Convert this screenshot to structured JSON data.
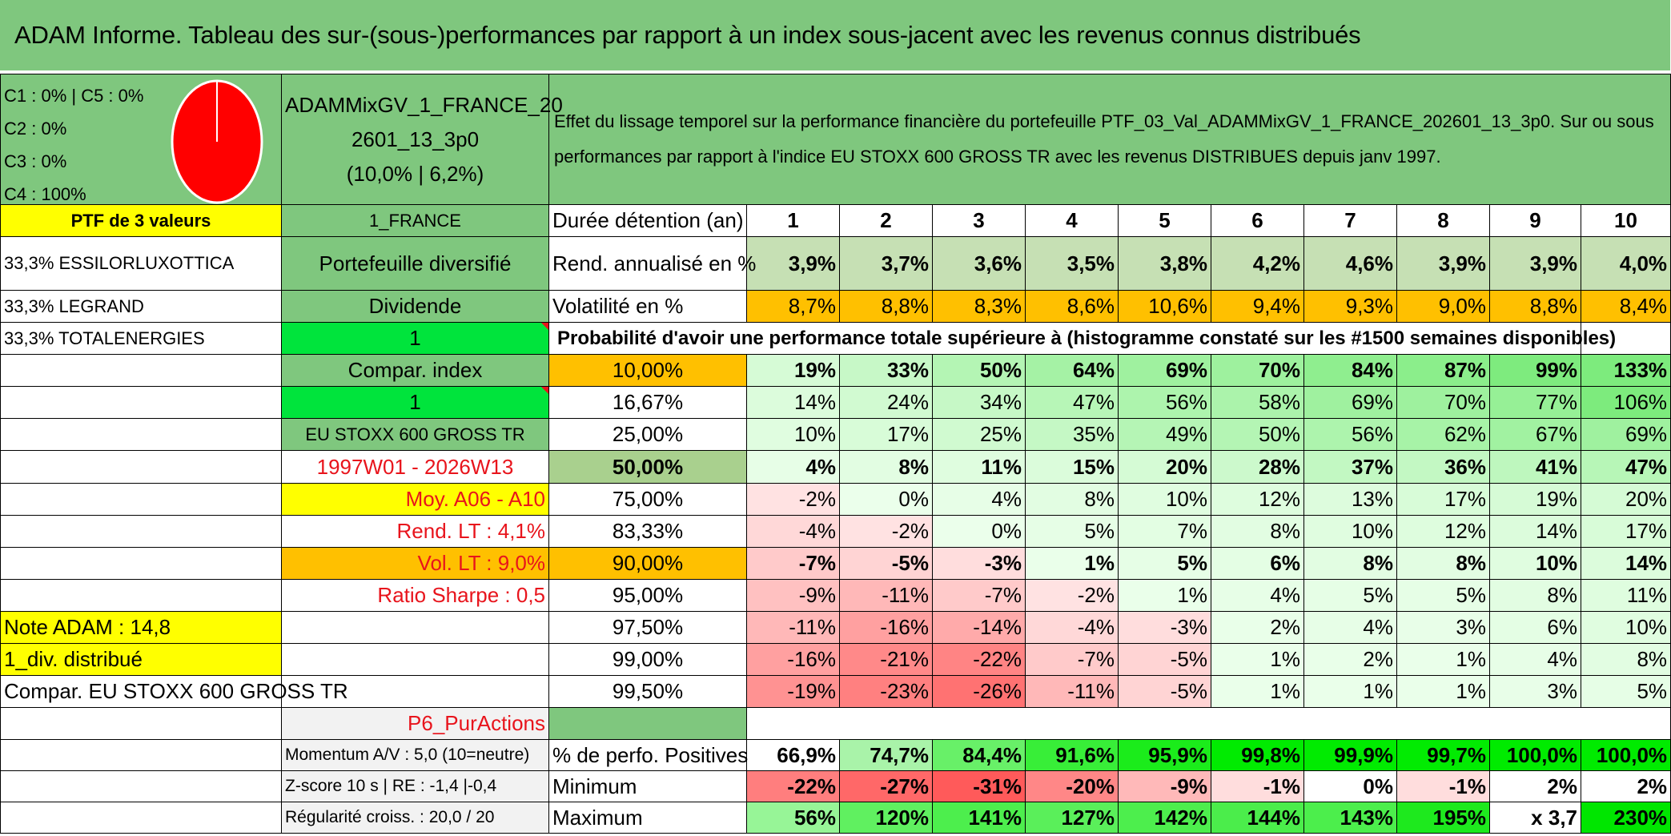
{
  "title": "ADAM Informe. Tableau des sur-(sous-)performances par rapport à un index sous-jacent avec les revenus connus distribués",
  "composition": {
    "lines": [
      "C1 : 0% | C5 : 0%",
      "C2 : 0%",
      "C3 : 0%",
      "C4 : 100%"
    ],
    "pie_color": "#ff0000"
  },
  "portfolio": {
    "name_line1": "ADAMMixGV_1_FRANCE_20",
    "name_line2": "2601_13_3p0",
    "name_line3": "(10,0% | 6,2%)",
    "effect_text": "Effet du lissage temporel sur la performance financière du portefeuille PTF_03_Val_ADAMMixGV_1_FRANCE_202601_13_3p0. Sur ou sous performances par rapport à l'indice EU STOXX 600 GROSS TR avec les revenus DISTRIBUES depuis janv 1997.",
    "ptf_label": "PTF de 3 valeurs",
    "category": "1_FRANCE",
    "holdings": [
      "33,3% ESSILORLUXOTTICA",
      "33,3% LEGRAND",
      "33,3% TOTALENERGIES"
    ],
    "diversified": "Portefeuille diversifié",
    "dividend_label": "Dividende",
    "dividend_value": "1",
    "compar_index_label": "Compar. index",
    "compar_index_value": "1",
    "index_name": "EU STOXX 600 GROSS TR",
    "period": "1997W01 - 2026W13",
    "avg_label": "Moy. A06 - A10",
    "rend_lt": "Rend. LT : 4,1%",
    "vol_lt": "Vol. LT : 9,0%",
    "sharpe": "Ratio Sharpe : 0,5",
    "note_adam": "Note ADAM : 14,8",
    "div_distrib": "1_div. distribué",
    "compar_text": "Compar. EU STOXX 600 GROSS TR",
    "p6": "P6_PurActions",
    "momentum": "Momentum A/V : 5,0 (10=neutre)",
    "zscore": "Z-score 10 s | RE : -1,4 |-0,4",
    "regularite": "Régularité croiss. : 20,0 / 20"
  },
  "table": {
    "duration_label": "Durée détention (an)",
    "years": [
      "1",
      "2",
      "3",
      "4",
      "5",
      "6",
      "7",
      "8",
      "9",
      "10"
    ],
    "rend_label": "Rend. annualisé en %",
    "rend": [
      "3,9%",
      "3,7%",
      "3,6%",
      "3,5%",
      "3,8%",
      "4,2%",
      "4,6%",
      "3,9%",
      "3,9%",
      "4,0%"
    ],
    "vol_label": "Volatilité en %",
    "vol": [
      "8,7%",
      "8,8%",
      "8,3%",
      "8,6%",
      "10,6%",
      "9,4%",
      "9,3%",
      "9,0%",
      "8,8%",
      "8,4%"
    ],
    "prob_header": "Probabilité d'avoir une performance totale supérieure à (histogramme constaté sur les #1500 semaines disponibles)",
    "quantiles": [
      {
        "label": "10,00%",
        "values": [
          "19%",
          "33%",
          "50%",
          "64%",
          "69%",
          "70%",
          "84%",
          "87%",
          "99%",
          "133%"
        ]
      },
      {
        "label": "16,67%",
        "values": [
          "14%",
          "24%",
          "34%",
          "47%",
          "56%",
          "58%",
          "69%",
          "70%",
          "77%",
          "106%"
        ]
      },
      {
        "label": "25,00%",
        "values": [
          "10%",
          "17%",
          "25%",
          "35%",
          "49%",
          "50%",
          "56%",
          "62%",
          "67%",
          "69%"
        ]
      },
      {
        "label": "50,00%",
        "values": [
          "4%",
          "8%",
          "11%",
          "15%",
          "20%",
          "28%",
          "37%",
          "36%",
          "41%",
          "47%"
        ]
      },
      {
        "label": "75,00%",
        "values": [
          "-2%",
          "0%",
          "4%",
          "8%",
          "10%",
          "12%",
          "13%",
          "17%",
          "19%",
          "20%"
        ]
      },
      {
        "label": "83,33%",
        "values": [
          "-4%",
          "-2%",
          "0%",
          "5%",
          "7%",
          "8%",
          "10%",
          "12%",
          "14%",
          "17%"
        ]
      },
      {
        "label": "90,00%",
        "values": [
          "-7%",
          "-5%",
          "-3%",
          "1%",
          "5%",
          "6%",
          "8%",
          "8%",
          "10%",
          "14%"
        ]
      },
      {
        "label": "95,00%",
        "values": [
          "-9%",
          "-11%",
          "-7%",
          "-2%",
          "1%",
          "4%",
          "5%",
          "5%",
          "8%",
          "11%"
        ]
      },
      {
        "label": "97,50%",
        "values": [
          "-11%",
          "-16%",
          "-14%",
          "-4%",
          "-3%",
          "2%",
          "4%",
          "3%",
          "6%",
          "10%"
        ]
      },
      {
        "label": "99,00%",
        "values": [
          "-16%",
          "-21%",
          "-22%",
          "-7%",
          "-5%",
          "1%",
          "2%",
          "1%",
          "4%",
          "8%"
        ]
      },
      {
        "label": "99,50%",
        "values": [
          "-19%",
          "-23%",
          "-26%",
          "-11%",
          "-5%",
          "1%",
          "1%",
          "1%",
          "3%",
          "5%"
        ]
      }
    ],
    "pos_label": "% de perfo. Positives",
    "pos": [
      "66,9%",
      "74,7%",
      "84,4%",
      "91,6%",
      "95,9%",
      "99,8%",
      "99,9%",
      "99,7%",
      "100,0%",
      "100,0%"
    ],
    "min_label": "Minimum",
    "min": [
      "-22%",
      "-27%",
      "-31%",
      "-20%",
      "-9%",
      "-1%",
      "0%",
      "-1%",
      "2%",
      "2%"
    ],
    "max_label": "Maximum",
    "max": [
      "56%",
      "120%",
      "141%",
      "127%",
      "142%",
      "144%",
      "143%",
      "195%",
      "x 3,7",
      "230%"
    ]
  },
  "colors": {
    "title_bg": "#7fc77e",
    "rend_bg": "#c6e0b4",
    "vol_bg": "#ffc000",
    "highlight_yellow": "#ffff00",
    "highlight_bright_green": "#00e43c"
  }
}
